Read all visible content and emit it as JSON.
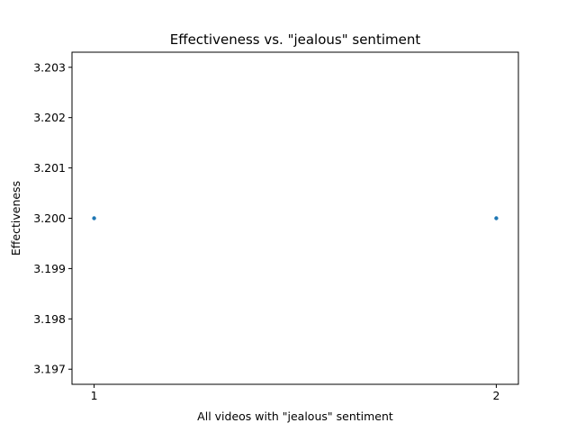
{
  "chart_data": {
    "type": "scatter",
    "title": "Effectiveness vs. \"jealous\" sentiment",
    "xlabel": "All videos with \"jealous\" sentiment",
    "ylabel": "Effectiveness",
    "x": [
      1,
      2
    ],
    "y": [
      3.2,
      3.2
    ],
    "xlim": [
      0.945,
      2.055
    ],
    "ylim": [
      3.1967,
      3.2033
    ],
    "xticks": [
      1,
      2
    ],
    "xtick_labels": [
      "1",
      "2"
    ],
    "yticks": [
      3.197,
      3.198,
      3.199,
      3.2,
      3.201,
      3.202,
      3.203
    ],
    "ytick_labels": [
      "3.197",
      "3.198",
      "3.199",
      "3.200",
      "3.201",
      "3.202",
      "3.203"
    ],
    "point_color": "#1f77b4",
    "grid": false,
    "legend": false
  }
}
